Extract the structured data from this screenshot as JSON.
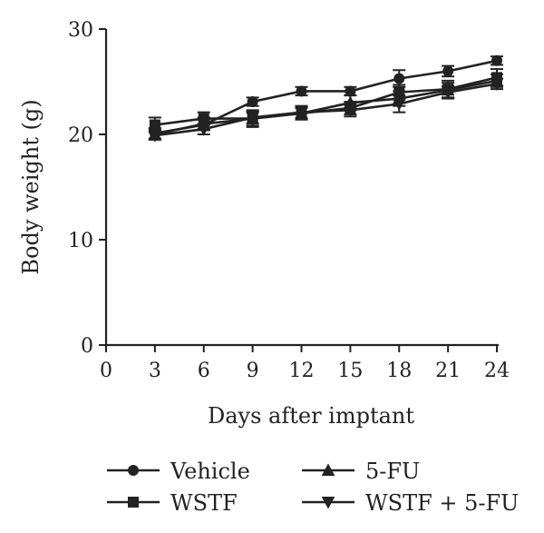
{
  "chart_data": {
    "type": "line",
    "title": "",
    "xlabel": "Days after imptant",
    "ylabel": "Body weight (g)",
    "xlim": [
      0,
      24
    ],
    "ylim": [
      0,
      30
    ],
    "x_ticks": [
      0,
      3,
      6,
      9,
      12,
      15,
      18,
      21,
      24
    ],
    "y_ticks": [
      0,
      10,
      20,
      30
    ],
    "grid": false,
    "legend_position": "bottom",
    "x": [
      3,
      6,
      9,
      12,
      15,
      18,
      21,
      24
    ],
    "series": [
      {
        "name": "Vehicle",
        "marker": "circle",
        "values": [
          20.1,
          20.9,
          23.1,
          24.1,
          24.1,
          25.3,
          26.0,
          27.0
        ],
        "errors": [
          0.5,
          0.5,
          0.4,
          0.4,
          0.4,
          0.8,
          0.5,
          0.4
        ]
      },
      {
        "name": "WSTF",
        "marker": "square",
        "values": [
          20.9,
          21.5,
          21.5,
          22.0,
          22.5,
          24.0,
          24.3,
          25.4
        ],
        "errors": [
          0.7,
          0.6,
          0.8,
          0.5,
          0.6,
          0.7,
          0.8,
          0.8
        ]
      },
      {
        "name": "5-FU",
        "marker": "triangle-up",
        "values": [
          20.0,
          21.0,
          21.5,
          22.0,
          23.0,
          23.4,
          24.2,
          25.1
        ],
        "errors": [
          0.5,
          0.6,
          0.7,
          0.6,
          0.7,
          0.7,
          0.7,
          0.6
        ]
      },
      {
        "name": "WSTF + 5-FU",
        "marker": "triangle-down",
        "values": [
          19.9,
          20.5,
          21.6,
          22.1,
          22.3,
          22.9,
          24.0,
          24.8
        ],
        "errors": [
          0.4,
          0.5,
          0.6,
          0.6,
          0.6,
          0.8,
          0.6,
          0.5
        ]
      }
    ]
  }
}
